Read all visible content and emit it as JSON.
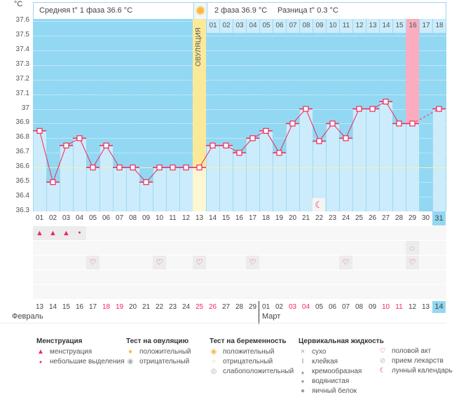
{
  "unit": "°C",
  "header": {
    "phase1": "Средняя t° 1 фаза 36.6 °C",
    "phase2": "2 фаза 36.9 °C",
    "diff": "Разница t° 0.3 °C"
  },
  "ovulation_label": "ОВУЛЯЦИЯ",
  "colors": {
    "bg": "#92d8f2",
    "bar": "#ccecfb",
    "line": "#f0285a",
    "ovulation": "#fbe99a",
    "highlight": "#fbadc0",
    "coverline": "#f6f0a0"
  },
  "chart_data": {
    "type": "line",
    "ylim": [
      36.3,
      37.6
    ],
    "yticks": [
      "37.6",
      "37.5",
      "37.4",
      "37.3",
      "37.2",
      "37.1",
      "37",
      "36.9",
      "36.8",
      "36.7",
      "36.6",
      "36.5",
      "36.4",
      "36.3"
    ],
    "cycle_days": [
      "01",
      "02",
      "03",
      "04",
      "05",
      "06",
      "07",
      "08",
      "09",
      "10",
      "11",
      "12",
      "13",
      "14",
      "15",
      "16",
      "17",
      "18",
      "19",
      "20",
      "21",
      "22",
      "23",
      "24",
      "25",
      "26",
      "27",
      "28",
      "29",
      "30",
      "31"
    ],
    "temps": [
      36.85,
      36.5,
      36.75,
      36.8,
      36.6,
      36.75,
      36.6,
      36.6,
      36.5,
      36.6,
      36.6,
      36.6,
      36.6,
      36.75,
      36.75,
      36.7,
      36.8,
      36.85,
      36.7,
      36.9,
      37.0,
      36.78,
      36.9,
      36.8,
      37.0,
      37.0,
      37.05,
      36.9,
      36.9,
      null,
      37.0
    ],
    "coverline": 36.6,
    "ovulation_day": 13,
    "highlight_day": 29,
    "current_day": 31,
    "phase2_days": [
      "01",
      "02",
      "03",
      "04",
      "05",
      "06",
      "07",
      "08",
      "09",
      "10",
      "11",
      "12",
      "13",
      "14",
      "15",
      "16",
      "17",
      "18"
    ]
  },
  "symbols": {
    "menstruation": {
      "1": "heavy",
      "2": "heavy",
      "3": "heavy",
      "4": "light"
    },
    "pregnancy_test": {
      "29": "negative"
    },
    "intercourse": [
      5,
      10,
      13,
      17,
      24,
      29
    ],
    "moon": [
      22
    ]
  },
  "dates": [
    "13",
    "14",
    "15",
    "16",
    "17",
    "18",
    "19",
    "20",
    "21",
    "22",
    "23",
    "24",
    "25",
    "26",
    "27",
    "28",
    "29",
    "01",
    "02",
    "03",
    "04",
    "05",
    "06",
    "07",
    "08",
    "09",
    "10",
    "11",
    "12",
    "13",
    "14"
  ],
  "weekend": [
    5,
    6,
    12,
    13,
    19,
    20,
    26,
    27
  ],
  "months": {
    "feb": "Февраль",
    "mar": "Март"
  },
  "legend": {
    "menstruation": {
      "title": "Менструация",
      "items": [
        "менструация",
        "небольшие выделения"
      ]
    },
    "ovulation_test": {
      "title": "Тест на овуляцию",
      "items": [
        "положительный",
        "отрицательный"
      ]
    },
    "pregnancy_test": {
      "title": "Тест на беременность",
      "items": [
        "положительный",
        "отрицательный",
        "слабоположительный"
      ]
    },
    "cervical": {
      "title": "Цервикальная жидкость",
      "items": [
        "сухо",
        "клейкая",
        "кремообразная",
        "водянистая",
        "яичный белок"
      ]
    },
    "other": {
      "items": [
        "половой акт",
        "прием лекарств",
        "лунный календарь"
      ]
    }
  }
}
